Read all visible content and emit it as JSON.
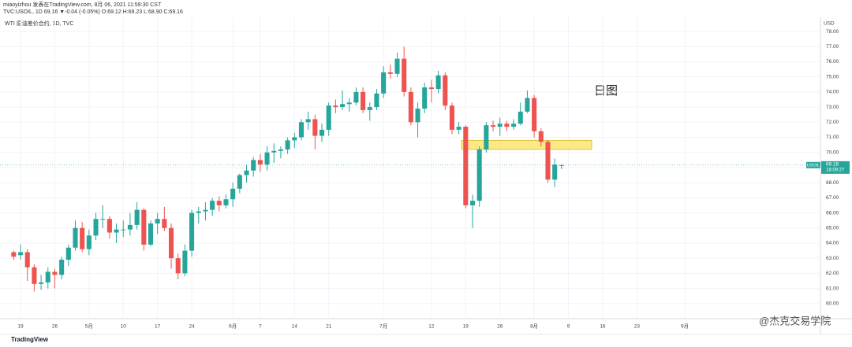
{
  "chart_data": {
    "type": "candlestick",
    "author_line": "miaoyizhou 发表在TradingView.com, 8月 06, 2021 11:59:30 CST",
    "symbol_line": "TVC:USOIL, 1D 69.16 ▼-0.04 (-0.05%) O:69.12 H:69.23 L:68.90 C:69.16",
    "title": "WTI 原油差价合约, 1D, TVC",
    "y_unit": "USD",
    "annotation": "日图",
    "brand": "TradingView",
    "watermark": "@杰克交易学院",
    "symbol": "USOIL",
    "last_price": 69.16,
    "last_price_label": "69.16",
    "countdown": "18:09:27",
    "up_color": "#26a69a",
    "down_color": "#ef5350",
    "zone": {
      "color": "#fbe986",
      "x": [
        65.4,
        84.4
      ],
      "y": [
        70.2,
        70.8
      ]
    },
    "grid": true,
    "xlim": [
      -2,
      117.8
    ],
    "ylim": [
      59.0,
      78.94
    ],
    "xticks": [
      {
        "value": 1,
        "label": "19"
      },
      {
        "value": 6,
        "label": "26"
      },
      {
        "value": 11,
        "label": "5月"
      },
      {
        "value": 16,
        "label": "10"
      },
      {
        "value": 21,
        "label": "17"
      },
      {
        "value": 26,
        "label": "24"
      },
      {
        "value": 32,
        "label": "6月"
      },
      {
        "value": 36,
        "label": "7"
      },
      {
        "value": 41,
        "label": "14"
      },
      {
        "value": 46,
        "label": "21"
      },
      {
        "value": 54,
        "label": "7月"
      },
      {
        "value": 61,
        "label": "12"
      },
      {
        "value": 66,
        "label": "19"
      },
      {
        "value": 71,
        "label": "26"
      },
      {
        "value": 76,
        "label": "8月"
      },
      {
        "value": 81,
        "label": "9"
      },
      {
        "value": 86,
        "label": "16"
      },
      {
        "value": 91,
        "label": "23"
      },
      {
        "value": 98,
        "label": "9月"
      }
    ],
    "yticks": [
      {
        "value": 60,
        "label": "60.00"
      },
      {
        "value": 61,
        "label": "61.00"
      },
      {
        "value": 62,
        "label": "62.00"
      },
      {
        "value": 63,
        "label": "63.00"
      },
      {
        "value": 64,
        "label": "64.00"
      },
      {
        "value": 65,
        "label": "65.00"
      },
      {
        "value": 66,
        "label": "66.00"
      },
      {
        "value": 67,
        "label": "67.00"
      },
      {
        "value": 68,
        "label": "68.00"
      },
      {
        "value": 69,
        "label": "69.00"
      },
      {
        "value": 70,
        "label": "70.00"
      },
      {
        "value": 71,
        "label": "71.00"
      },
      {
        "value": 72,
        "label": "72.00"
      },
      {
        "value": 73,
        "label": "73.00"
      },
      {
        "value": 74,
        "label": "74.00"
      },
      {
        "value": 75,
        "label": "75.00"
      },
      {
        "value": 76,
        "label": "76.00"
      },
      {
        "value": 77,
        "label": "77.00"
      },
      {
        "value": 78,
        "label": "78.00"
      }
    ],
    "open": [
      63.4,
      63.2,
      63.4,
      62.4,
      61.3,
      61.4,
      62.1,
      61.9,
      62.9,
      63.7,
      65.0,
      63.6,
      64.5,
      65.6,
      65.6,
      64.7,
      64.9,
      64.9,
      65.2,
      66.2,
      63.9,
      65.3,
      65.6,
      65.0,
      63.0,
      62.0,
      63.5,
      66.0,
      66.1,
      66.2,
      66.8,
      66.5,
      66.9,
      67.6,
      68.5,
      68.8,
      69.5,
      69.2,
      70.0,
      70.1,
      70.2,
      70.8,
      71.0,
      72.0,
      72.2,
      71.1,
      71.5,
      73.1,
      73.0,
      73.2,
      73.3,
      74.0,
      72.8,
      73.0,
      73.9,
      75.3,
      75.2,
      76.2,
      74.0,
      72.0,
      72.9,
      74.3,
      74.2,
      75.1,
      73.1,
      71.5,
      71.7,
      66.5,
      66.8,
      70.2,
      71.8,
      71.7,
      71.9,
      71.7,
      71.9,
      72.7,
      73.6,
      71.4,
      70.7,
      68.2,
      69.12
    ],
    "high": [
      63.5,
      63.9,
      63.6,
      62.6,
      61.9,
      62.4,
      62.3,
      63.1,
      63.9,
      65.5,
      65.4,
      64.9,
      66.0,
      66.5,
      65.8,
      65.3,
      65.5,
      66.0,
      66.7,
      66.3,
      65.5,
      66.0,
      66.4,
      65.3,
      63.3,
      63.9,
      66.2,
      66.4,
      66.7,
      67.0,
      67.1,
      67.2,
      68.0,
      68.6,
      69.2,
      69.7,
      69.9,
      70.4,
      70.6,
      70.4,
      71.0,
      71.3,
      72.2,
      72.7,
      72.5,
      71.9,
      73.3,
      73.5,
      74.1,
      73.6,
      74.3,
      74.3,
      73.3,
      74.2,
      75.7,
      75.8,
      76.6,
      77.0,
      74.3,
      73.3,
      74.6,
      74.8,
      75.4,
      75.3,
      73.3,
      72.0,
      71.8,
      67.2,
      70.4,
      72.0,
      72.1,
      72.3,
      72.1,
      72.2,
      73.3,
      74.1,
      73.8,
      71.6,
      70.8,
      69.6,
      69.23
    ],
    "low": [
      62.9,
      62.9,
      61.5,
      60.8,
      60.9,
      61.0,
      61.0,
      61.6,
      62.5,
      63.5,
      63.4,
      63.2,
      64.2,
      65.0,
      64.3,
      64.0,
      64.4,
      64.5,
      64.9,
      63.5,
      63.8,
      64.6,
      64.8,
      62.3,
      61.6,
      61.8,
      63.1,
      65.3,
      65.5,
      65.8,
      66.1,
      66.3,
      66.4,
      67.3,
      68.0,
      68.4,
      68.7,
      68.8,
      69.3,
      69.6,
      69.9,
      70.3,
      70.8,
      71.5,
      70.2,
      70.7,
      71.1,
      72.6,
      72.8,
      72.7,
      73.1,
      72.6,
      72.1,
      72.8,
      73.6,
      74.9,
      75.0,
      73.7,
      71.8,
      71.0,
      72.6,
      73.3,
      73.9,
      72.8,
      71.2,
      71.2,
      66.3,
      65.0,
      66.4,
      70.0,
      71.4,
      71.1,
      71.4,
      71.5,
      71.8,
      72.6,
      71.0,
      70.4,
      68.0,
      67.7,
      68.9
    ],
    "close": [
      63.1,
      63.4,
      62.4,
      61.3,
      61.4,
      62.1,
      61.9,
      62.9,
      63.7,
      65.0,
      63.6,
      64.5,
      65.6,
      65.6,
      64.7,
      64.9,
      64.9,
      65.2,
      66.2,
      63.9,
      65.3,
      65.6,
      65.0,
      63.0,
      62.0,
      63.5,
      66.0,
      66.1,
      66.2,
      66.8,
      66.5,
      66.9,
      67.6,
      68.5,
      68.8,
      69.5,
      69.2,
      70.0,
      70.1,
      70.2,
      70.8,
      71.0,
      72.0,
      72.2,
      71.1,
      71.5,
      73.1,
      73.0,
      73.2,
      73.3,
      74.0,
      72.8,
      73.0,
      73.9,
      75.3,
      75.2,
      76.2,
      74.0,
      72.0,
      72.9,
      74.3,
      74.2,
      75.1,
      73.1,
      71.5,
      71.7,
      66.5,
      66.8,
      70.2,
      71.8,
      71.7,
      71.9,
      71.7,
      71.9,
      72.7,
      73.6,
      71.4,
      70.7,
      68.2,
      69.2,
      69.16
    ]
  }
}
